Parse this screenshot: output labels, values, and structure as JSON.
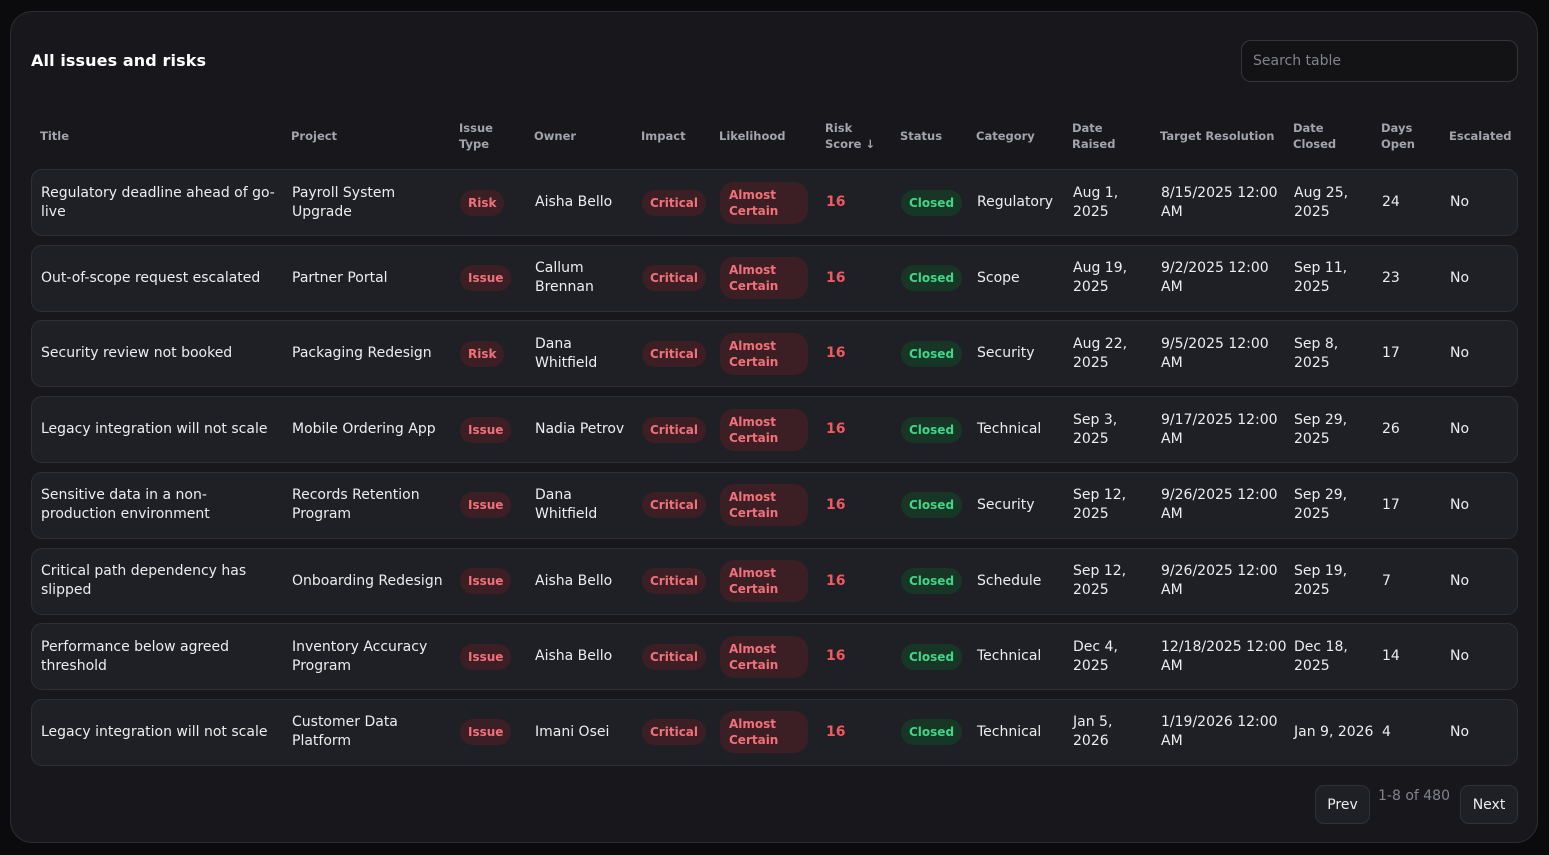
{
  "title": "All issues and risks",
  "search": {
    "placeholder": "Search table"
  },
  "columns": {
    "title": "Title",
    "project": "Project",
    "issue_type": "Issue Type",
    "owner": "Owner",
    "impact": "Impact",
    "likelihood": "Likelihood",
    "risk_score": "Risk Score ↓",
    "status": "Status",
    "category": "Category",
    "date_raised": "Date Raised",
    "target_resolution": "Target Resolution",
    "date_closed": "Date Closed",
    "days_open": "Days Open",
    "escalated": "Escalated"
  },
  "rows": [
    {
      "title": "Regulatory deadline ahead of go-live",
      "project": "Payroll System Upgrade",
      "issue_type": "Risk",
      "owner": "Aisha Bello",
      "impact": "Critical",
      "likelihood": "Almost Certain",
      "risk_score": "16",
      "status": "Closed",
      "category": "Regulatory",
      "date_raised": "Aug 1, 2025",
      "target_resolution": "8/15/2025 12:00 AM",
      "date_closed": "Aug 25, 2025",
      "days_open": "24",
      "escalated": "No"
    },
    {
      "title": "Out-of-scope request escalated",
      "project": "Partner Portal",
      "issue_type": "Issue",
      "owner": "Callum Brennan",
      "impact": "Critical",
      "likelihood": "Almost Certain",
      "risk_score": "16",
      "status": "Closed",
      "category": "Scope",
      "date_raised": "Aug 19, 2025",
      "target_resolution": "9/2/2025 12:00 AM",
      "date_closed": "Sep 11, 2025",
      "days_open": "23",
      "escalated": "No"
    },
    {
      "title": "Security review not booked",
      "project": "Packaging Redesign",
      "issue_type": "Risk",
      "owner": "Dana Whitfield",
      "impact": "Critical",
      "likelihood": "Almost Certain",
      "risk_score": "16",
      "status": "Closed",
      "category": "Security",
      "date_raised": "Aug 22, 2025",
      "target_resolution": "9/5/2025 12:00 AM",
      "date_closed": "Sep 8, 2025",
      "days_open": "17",
      "escalated": "No"
    },
    {
      "title": "Legacy integration will not scale",
      "project": "Mobile Ordering App",
      "issue_type": "Issue",
      "owner": "Nadia Petrov",
      "impact": "Critical",
      "likelihood": "Almost Certain",
      "risk_score": "16",
      "status": "Closed",
      "category": "Technical",
      "date_raised": "Sep 3, 2025",
      "target_resolution": "9/17/2025 12:00 AM",
      "date_closed": "Sep 29, 2025",
      "days_open": "26",
      "escalated": "No"
    },
    {
      "title": "Sensitive data in a non-production environment",
      "project": "Records Retention Program",
      "issue_type": "Issue",
      "owner": "Dana Whitfield",
      "impact": "Critical",
      "likelihood": "Almost Certain",
      "risk_score": "16",
      "status": "Closed",
      "category": "Security",
      "date_raised": "Sep 12, 2025",
      "target_resolution": "9/26/2025 12:00 AM",
      "date_closed": "Sep 29, 2025",
      "days_open": "17",
      "escalated": "No"
    },
    {
      "title": "Critical path dependency has slipped",
      "project": "Onboarding Redesign",
      "issue_type": "Issue",
      "owner": "Aisha Bello",
      "impact": "Critical",
      "likelihood": "Almost Certain",
      "risk_score": "16",
      "status": "Closed",
      "category": "Schedule",
      "date_raised": "Sep 12, 2025",
      "target_resolution": "9/26/2025 12:00 AM",
      "date_closed": "Sep 19, 2025",
      "days_open": "7",
      "escalated": "No"
    },
    {
      "title": "Performance below agreed threshold",
      "project": "Inventory Accuracy Program",
      "issue_type": "Issue",
      "owner": "Aisha Bello",
      "impact": "Critical",
      "likelihood": "Almost Certain",
      "risk_score": "16",
      "status": "Closed",
      "category": "Technical",
      "date_raised": "Dec 4, 2025",
      "target_resolution": "12/18/2025 12:00 AM",
      "date_closed": "Dec 18, 2025",
      "days_open": "14",
      "escalated": "No"
    },
    {
      "title": "Legacy integration will not scale",
      "project": "Customer Data Platform",
      "issue_type": "Issue",
      "owner": "Imani Osei",
      "impact": "Critical",
      "likelihood": "Almost Certain",
      "risk_score": "16",
      "status": "Closed",
      "category": "Technical",
      "date_raised": "Jan 5, 2026",
      "target_resolution": "1/19/2026 12:00 AM",
      "date_closed": "Jan 9, 2026",
      "days_open": "4",
      "escalated": "No"
    }
  ],
  "pagination": {
    "prev_label": "Prev",
    "info": "1-8 of 480",
    "next_label": "Next"
  }
}
